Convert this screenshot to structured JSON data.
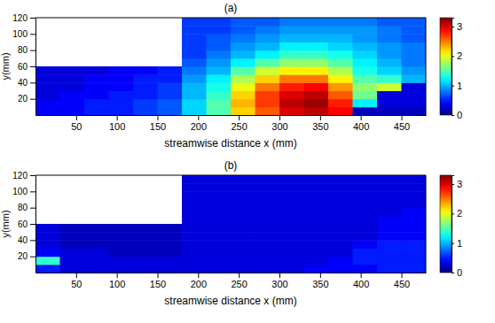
{
  "chart_data": [
    {
      "type": "heatmap",
      "title": "(a)",
      "x_label": "streamwise distance x (mm)",
      "y_label": "y(mm)",
      "xlim": [
        0,
        480
      ],
      "ylim": [
        0,
        120
      ],
      "xticks": [
        50,
        100,
        150,
        200,
        250,
        300,
        350,
        400,
        450
      ],
      "yticks": [
        20,
        40,
        60,
        80,
        100,
        120
      ],
      "x_edges": [
        0,
        30,
        60,
        90,
        120,
        150,
        180,
        210,
        240,
        270,
        300,
        330,
        360,
        390,
        420,
        450,
        480
      ],
      "y_edges": [
        0,
        10,
        20,
        30,
        40,
        50,
        60,
        70,
        80,
        90,
        100,
        110,
        120
      ],
      "z": [
        [
          0.4,
          0.4,
          0.5,
          0.5,
          0.6,
          0.7,
          1.1,
          1.5,
          2.2,
          2.6,
          3.0,
          3.1,
          2.9,
          0.2,
          0.2,
          0.2
        ],
        [
          0.4,
          0.4,
          0.5,
          0.5,
          0.6,
          0.7,
          1.1,
          1.5,
          2.3,
          2.7,
          3.1,
          3.2,
          2.8,
          1.2,
          0.3,
          0.3
        ],
        [
          0.3,
          0.4,
          0.4,
          0.5,
          0.5,
          0.6,
          1.0,
          1.4,
          2.2,
          2.7,
          3.0,
          3.1,
          2.6,
          1.6,
          0.3,
          0.3
        ],
        [
          0.3,
          0.3,
          0.4,
          0.4,
          0.5,
          0.6,
          1.0,
          1.3,
          2.0,
          2.5,
          2.8,
          2.9,
          2.4,
          1.7,
          1.9,
          0.3
        ],
        [
          0.3,
          0.3,
          0.4,
          0.4,
          0.5,
          0.5,
          0.9,
          1.2,
          1.8,
          2.2,
          2.5,
          2.5,
          2.1,
          1.5,
          1.4,
          1.0
        ],
        [
          0.3,
          0.3,
          0.3,
          0.4,
          0.4,
          0.5,
          0.8,
          1.0,
          1.5,
          1.9,
          2.1,
          2.1,
          1.8,
          1.3,
          1.1,
          0.9
        ],
        [
          null,
          null,
          null,
          null,
          null,
          null,
          0.7,
          0.9,
          1.2,
          1.5,
          1.7,
          1.7,
          1.5,
          1.2,
          1.0,
          0.8
        ],
        [
          null,
          null,
          null,
          null,
          null,
          null,
          0.6,
          0.8,
          1.0,
          1.2,
          1.4,
          1.4,
          1.3,
          1.1,
          0.9,
          0.8
        ],
        [
          null,
          null,
          null,
          null,
          null,
          null,
          0.6,
          0.7,
          0.9,
          1.0,
          1.2,
          1.2,
          1.1,
          1.0,
          0.9,
          0.8
        ],
        [
          null,
          null,
          null,
          null,
          null,
          null,
          0.6,
          0.7,
          0.8,
          0.9,
          1.0,
          1.0,
          1.0,
          0.9,
          0.8,
          0.7
        ],
        [
          null,
          null,
          null,
          null,
          null,
          null,
          0.6,
          0.6,
          0.7,
          0.8,
          0.9,
          0.9,
          0.9,
          0.9,
          0.8,
          0.7
        ],
        [
          null,
          null,
          null,
          null,
          null,
          null,
          0.6,
          0.6,
          0.7,
          0.7,
          0.8,
          0.8,
          0.8,
          0.8,
          0.7,
          0.7
        ]
      ],
      "colorbar": {
        "range": [
          0,
          3.3
        ],
        "ticks": [
          0,
          1,
          2,
          3
        ]
      }
    },
    {
      "type": "heatmap",
      "title": "(b)",
      "x_label": "streamwise distance x (mm)",
      "y_label": "y(mm)",
      "xlim": [
        0,
        480
      ],
      "ylim": [
        0,
        120
      ],
      "xticks": [
        50,
        100,
        150,
        200,
        250,
        300,
        350,
        400,
        450
      ],
      "yticks": [
        20,
        40,
        60,
        80,
        100,
        120
      ],
      "x_edges": [
        0,
        30,
        60,
        90,
        120,
        150,
        180,
        210,
        240,
        270,
        300,
        330,
        360,
        390,
        420,
        450,
        480
      ],
      "y_edges": [
        0,
        10,
        20,
        30,
        40,
        50,
        60,
        70,
        80,
        90,
        100,
        110,
        120
      ],
      "z": [
        [
          0.5,
          0.3,
          0.3,
          0.3,
          0.3,
          0.3,
          0.3,
          0.3,
          0.3,
          0.3,
          0.3,
          0.4,
          0.4,
          0.4,
          0.5,
          0.5
        ],
        [
          1.4,
          0.3,
          0.3,
          0.3,
          0.3,
          0.3,
          0.3,
          0.3,
          0.3,
          0.3,
          0.3,
          0.3,
          0.4,
          0.5,
          0.5,
          0.5
        ],
        [
          0.4,
          0.3,
          0.3,
          0.2,
          0.2,
          0.2,
          0.3,
          0.3,
          0.3,
          0.3,
          0.3,
          0.3,
          0.3,
          0.5,
          0.5,
          0.5
        ],
        [
          0.3,
          0.2,
          0.2,
          0.2,
          0.2,
          0.2,
          0.3,
          0.3,
          0.3,
          0.3,
          0.3,
          0.3,
          0.3,
          0.4,
          0.5,
          0.5
        ],
        [
          0.3,
          0.2,
          0.2,
          0.2,
          0.2,
          0.2,
          0.3,
          0.3,
          0.3,
          0.3,
          0.3,
          0.3,
          0.3,
          0.3,
          0.4,
          0.4
        ],
        [
          0.3,
          0.2,
          0.2,
          0.2,
          0.2,
          0.2,
          0.3,
          0.3,
          0.3,
          0.3,
          0.3,
          0.3,
          0.3,
          0.3,
          0.4,
          0.4
        ],
        [
          null,
          null,
          null,
          null,
          null,
          null,
          0.3,
          0.3,
          0.3,
          0.3,
          0.3,
          0.3,
          0.3,
          0.3,
          0.4,
          0.4
        ],
        [
          null,
          null,
          null,
          null,
          null,
          null,
          0.3,
          0.3,
          0.3,
          0.3,
          0.3,
          0.3,
          0.3,
          0.3,
          0.3,
          0.4
        ],
        [
          null,
          null,
          null,
          null,
          null,
          null,
          0.3,
          0.3,
          0.3,
          0.3,
          0.3,
          0.3,
          0.3,
          0.3,
          0.3,
          0.3
        ],
        [
          null,
          null,
          null,
          null,
          null,
          null,
          0.3,
          0.3,
          0.3,
          0.3,
          0.3,
          0.3,
          0.3,
          0.3,
          0.3,
          0.3
        ],
        [
          null,
          null,
          null,
          null,
          null,
          null,
          0.3,
          0.3,
          0.3,
          0.3,
          0.3,
          0.3,
          0.3,
          0.3,
          0.3,
          0.3
        ],
        [
          null,
          null,
          null,
          null,
          null,
          null,
          0.3,
          0.3,
          0.3,
          0.3,
          0.3,
          0.3,
          0.3,
          0.3,
          0.3,
          0.3
        ]
      ],
      "colorbar": {
        "range": [
          0,
          3.3
        ],
        "ticks": [
          0,
          1,
          2,
          3
        ]
      }
    }
  ]
}
